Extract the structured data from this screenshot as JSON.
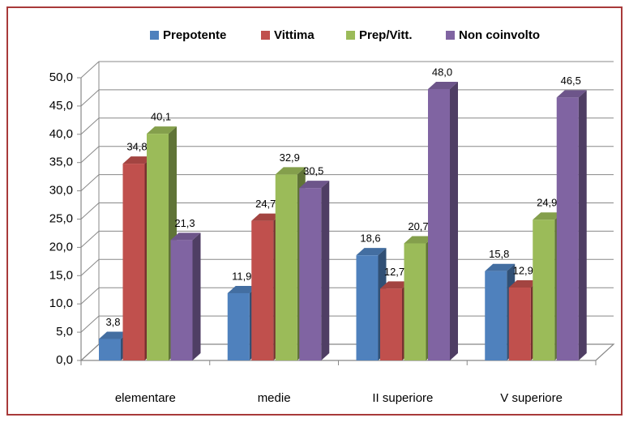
{
  "chart_data": {
    "type": "bar3d",
    "categories": [
      "elementare",
      "medie",
      "II superiore",
      "V superiore"
    ],
    "series": [
      {
        "name": "Prepotente",
        "color": "#4f81bd",
        "values": [
          3.8,
          11.9,
          18.6,
          15.8
        ],
        "value_labels": [
          "3,8",
          "11,9",
          "18,6",
          "15,8"
        ]
      },
      {
        "name": "Vittima",
        "color": "#c0504d",
        "values": [
          34.8,
          24.7,
          12.7,
          12.9
        ],
        "value_labels": [
          "34,8",
          "24,7",
          "12,7",
          "12,9"
        ]
      },
      {
        "name": "Prep/Vitt.",
        "color": "#9bbb59",
        "values": [
          40.1,
          32.9,
          20.7,
          24.9
        ],
        "value_labels": [
          "40,1",
          "32,9",
          "20,7",
          "24,9"
        ]
      },
      {
        "name": "Non coinvolto",
        "color": "#8064a2",
        "values": [
          21.3,
          30.5,
          48.0,
          46.5
        ],
        "value_labels": [
          "21,3",
          "30,5",
          "48,0",
          "46,5"
        ]
      }
    ],
    "ylim": [
      0,
      50
    ],
    "yticks": [
      {
        "value": 0,
        "label": "0,0"
      },
      {
        "value": 5,
        "label": "5,0"
      },
      {
        "value": 10,
        "label": "10,0"
      },
      {
        "value": 15,
        "label": "15,0"
      },
      {
        "value": 20,
        "label": "20,0"
      },
      {
        "value": 25,
        "label": "25,0"
      },
      {
        "value": 30,
        "label": "30,0"
      },
      {
        "value": 35,
        "label": "35,0"
      },
      {
        "value": 40,
        "label": "40,0"
      },
      {
        "value": 45,
        "label": "45,0"
      },
      {
        "value": 50,
        "label": "50,0"
      }
    ],
    "grid": true,
    "legend": "top"
  }
}
